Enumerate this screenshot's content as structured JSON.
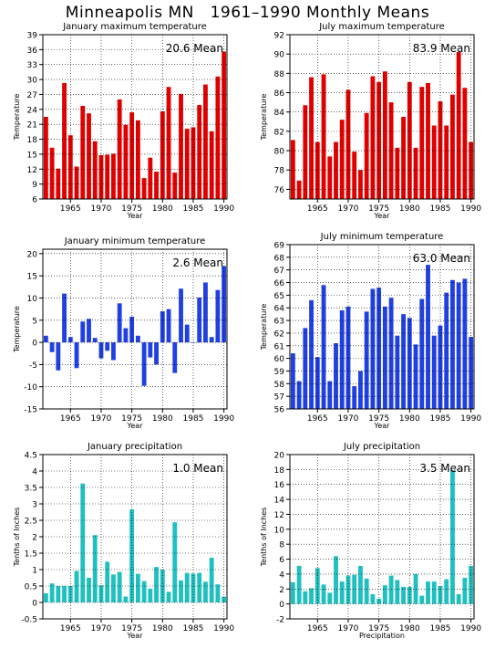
{
  "title": "Minneapolis MN   1961–1990 Monthly Means",
  "chart_data": [
    {
      "type": "bar",
      "title": "January maximum temperature",
      "annotation": "20.6 Mean",
      "xlabel": "Year",
      "ylabel": "Temperature",
      "color": "#e00000",
      "ylim": [
        6,
        39
      ],
      "yticks": [
        6,
        9,
        12,
        15,
        18,
        21,
        24,
        27,
        30,
        33,
        36,
        39
      ],
      "xticks": [
        1965,
        1970,
        1975,
        1980,
        1985,
        1990
      ],
      "grid": true,
      "years": [
        1961,
        1962,
        1963,
        1964,
        1965,
        1966,
        1967,
        1968,
        1969,
        1970,
        1971,
        1972,
        1973,
        1974,
        1975,
        1976,
        1977,
        1978,
        1979,
        1980,
        1981,
        1982,
        1983,
        1984,
        1985,
        1986,
        1987,
        1988,
        1989,
        1990
      ],
      "values": [
        22.5,
        16.3,
        12.1,
        29.3,
        18.8,
        12.5,
        24.7,
        23.2,
        17.6,
        14.8,
        14.9,
        15.1,
        26.0,
        20.9,
        23.4,
        21.8,
        10.2,
        14.3,
        11.5,
        23.6,
        28.5,
        11.3,
        27.1,
        20.1,
        20.4,
        24.9,
        29.0,
        19.6,
        30.6,
        35.6
      ]
    },
    {
      "type": "bar",
      "title": "July maximum temperature",
      "annotation": "83.9 Mean",
      "xlabel": "Year",
      "ylabel": "Temperature",
      "color": "#e00000",
      "ylim": [
        75,
        92
      ],
      "yticks": [
        76,
        78,
        80,
        82,
        84,
        86,
        88,
        90,
        92
      ],
      "xticks": [
        1965,
        1970,
        1975,
        1980,
        1985,
        1990
      ],
      "grid": true,
      "years": [
        1961,
        1962,
        1963,
        1964,
        1965,
        1966,
        1967,
        1968,
        1969,
        1970,
        1971,
        1972,
        1973,
        1974,
        1975,
        1976,
        1977,
        1978,
        1979,
        1980,
        1981,
        1982,
        1983,
        1984,
        1985,
        1986,
        1987,
        1988,
        1989,
        1990
      ],
      "values": [
        81.1,
        76.9,
        84.7,
        87.6,
        80.9,
        87.9,
        79.4,
        80.9,
        83.2,
        86.3,
        79.9,
        78.0,
        83.9,
        87.7,
        87.1,
        88.2,
        85.0,
        80.3,
        83.5,
        87.1,
        80.3,
        86.6,
        87.0,
        82.6,
        85.1,
        82.6,
        85.8,
        90.2,
        86.5,
        80.9
      ]
    },
    {
      "type": "bar",
      "title": "January minimum temperature",
      "annotation": "2.6 Mean",
      "xlabel": "Year",
      "ylabel": "Temperature",
      "color": "#2040e0",
      "ylim": [
        -15,
        21
      ],
      "yticks": [
        -15,
        -10,
        -5,
        0,
        5,
        10,
        15,
        20
      ],
      "xticks": [
        1965,
        1970,
        1975,
        1980,
        1985,
        1990
      ],
      "grid": true,
      "years": [
        1961,
        1962,
        1963,
        1964,
        1965,
        1966,
        1967,
        1968,
        1969,
        1970,
        1971,
        1972,
        1973,
        1974,
        1975,
        1976,
        1977,
        1978,
        1979,
        1980,
        1981,
        1982,
        1983,
        1984,
        1985,
        1986,
        1987,
        1988,
        1989,
        1990
      ],
      "values": [
        1.5,
        -2.2,
        -6.3,
        11.0,
        1.2,
        -5.8,
        4.7,
        5.3,
        1.0,
        -3.6,
        -1.9,
        -4.0,
        8.8,
        3.2,
        5.8,
        1.5,
        -9.8,
        -3.4,
        -5.0,
        7.0,
        7.5,
        -6.9,
        12.1,
        4.0,
        0.0,
        10.1,
        13.5,
        1.2,
        11.8,
        17.2
      ]
    },
    {
      "type": "bar",
      "title": "July minimum temperature",
      "annotation": "63.0 Mean",
      "xlabel": "Year",
      "ylabel": "Temperature",
      "color": "#2040e0",
      "ylim": [
        56,
        69
      ],
      "yticks": [
        56,
        57,
        58,
        59,
        60,
        61,
        62,
        63,
        64,
        65,
        66,
        67,
        68,
        69
      ],
      "xticks": [
        1965,
        1970,
        1975,
        1980,
        1985,
        1990
      ],
      "grid": true,
      "years": [
        1961,
        1962,
        1963,
        1964,
        1965,
        1966,
        1967,
        1968,
        1969,
        1970,
        1971,
        1972,
        1973,
        1974,
        1975,
        1976,
        1977,
        1978,
        1979,
        1980,
        1981,
        1982,
        1983,
        1984,
        1985,
        1986,
        1987,
        1988,
        1989,
        1990
      ],
      "values": [
        60.4,
        58.2,
        62.4,
        64.6,
        60.1,
        65.8,
        58.2,
        61.2,
        63.8,
        64.1,
        57.8,
        59.0,
        63.7,
        65.5,
        65.6,
        64.1,
        64.8,
        61.8,
        63.5,
        63.2,
        61.1,
        64.7,
        67.4,
        61.8,
        62.6,
        65.2,
        66.2,
        66.0,
        66.3,
        61.7
      ]
    },
    {
      "type": "bar",
      "title": "January precipitation",
      "annotation": "1.0 Mean",
      "xlabel": "Year",
      "ylabel": "Tenths of Inches",
      "color": "#20c0c0",
      "ylim": [
        -0.5,
        4.5
      ],
      "yticks": [
        -0.5,
        0,
        0.5,
        1,
        1.5,
        2,
        2.5,
        3,
        3.5,
        4,
        4.5
      ],
      "xticks": [
        1965,
        1970,
        1975,
        1980,
        1985,
        1990
      ],
      "grid": true,
      "years": [
        1961,
        1962,
        1963,
        1964,
        1965,
        1966,
        1967,
        1968,
        1969,
        1970,
        1971,
        1972,
        1973,
        1974,
        1975,
        1976,
        1977,
        1978,
        1979,
        1980,
        1981,
        1982,
        1983,
        1984,
        1985,
        1986,
        1987,
        1988,
        1989,
        1990
      ],
      "values": [
        0.28,
        0.58,
        0.5,
        0.5,
        0.5,
        0.96,
        3.62,
        0.75,
        2.05,
        0.52,
        1.24,
        0.85,
        0.93,
        0.18,
        2.83,
        0.87,
        0.65,
        0.42,
        1.08,
        1.0,
        0.32,
        2.44,
        0.67,
        0.9,
        0.88,
        0.9,
        0.63,
        1.36,
        0.55,
        0.18
      ]
    },
    {
      "type": "bar",
      "title": "July precipitation",
      "annotation": "3.5 Mean",
      "xlabel": "Precipitation",
      "ylabel": "Tenths of Inches",
      "color": "#20c0c0",
      "ylim": [
        -2,
        20
      ],
      "yticks": [
        -2,
        0,
        2,
        4,
        6,
        8,
        10,
        12,
        14,
        16,
        18,
        20
      ],
      "xticks": [
        1965,
        1970,
        1975,
        1980,
        1985,
        1990
      ],
      "grid": true,
      "years": [
        1961,
        1962,
        1963,
        1964,
        1965,
        1966,
        1967,
        1968,
        1969,
        1970,
        1971,
        1972,
        1973,
        1974,
        1975,
        1976,
        1977,
        1978,
        1979,
        1980,
        1981,
        1982,
        1983,
        1984,
        1985,
        1986,
        1987,
        1988,
        1989,
        1990
      ],
      "values": [
        2.9,
        5.1,
        1.7,
        2.1,
        4.8,
        2.6,
        1.5,
        6.4,
        3.0,
        3.8,
        3.9,
        5.1,
        3.4,
        1.3,
        0.7,
        2.5,
        3.8,
        3.2,
        2.3,
        2.3,
        4.0,
        1.1,
        3.0,
        3.0,
        2.4,
        3.3,
        17.9,
        1.3,
        3.5,
        5.1
      ]
    }
  ]
}
